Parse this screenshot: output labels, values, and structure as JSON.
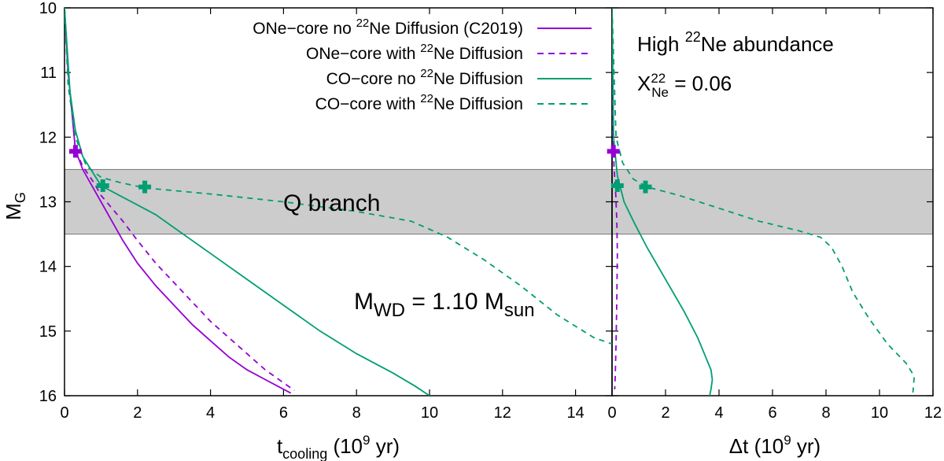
{
  "chart_data": {
    "type": "line",
    "y_axis": {
      "label_main": "M",
      "label_sub": "G",
      "ylim": [
        10,
        16
      ],
      "inverted": true,
      "ticks": [
        10,
        11,
        12,
        13,
        14,
        15,
        16
      ],
      "tick_labels": [
        "10",
        "11",
        "12",
        "13",
        "14",
        "15",
        "16"
      ]
    },
    "qbranch": {
      "label": "Q branch",
      "y_range": [
        12.5,
        13.5
      ],
      "color": "#cccccc"
    },
    "series_meta": [
      {
        "key": "one_nodiff",
        "color": "#9400d3",
        "dash": "solid",
        "legend_pre": "ONe−core no ",
        "legend_sup": "22",
        "legend_post": "Ne Diffusion (C2019)"
      },
      {
        "key": "one_diff",
        "color": "#9400d3",
        "dash": "dashed",
        "legend_pre": "ONe−core with ",
        "legend_sup": "22",
        "legend_post": "Ne Diffusion"
      },
      {
        "key": "co_nodiff",
        "color": "#009e73",
        "dash": "solid",
        "legend_pre": "CO−core no ",
        "legend_sup": "22",
        "legend_post": "Ne Diffusion"
      },
      {
        "key": "co_diff",
        "color": "#009e73",
        "dash": "dashed",
        "legend_pre": "CO−core with ",
        "legend_sup": "22",
        "legend_post": "Ne Diffusion"
      }
    ],
    "panels": [
      {
        "name": "left",
        "xlabel_main": "t",
        "xlabel_sub": "cooling",
        "xlabel_rest": " (10",
        "xlabel_sup": "9",
        "xlabel_end": " yr)",
        "xlim": [
          0,
          15
        ],
        "xticks": [
          0,
          2,
          4,
          6,
          8,
          10,
          12,
          14
        ],
        "xtick_labels": [
          "0",
          "2",
          "4",
          "6",
          "8",
          "10",
          "12",
          "14"
        ],
        "series": [
          {
            "key": "one_nodiff",
            "x": [
              0.0,
              0.1,
              0.2,
              0.3,
              0.5,
              0.8,
              1.0,
              1.3,
              1.6,
              2.0,
              2.5,
              3.0,
              3.5,
              4.0,
              4.5,
              5.0,
              5.5,
              6.0,
              6.2
            ],
            "y": [
              10.0,
              11.0,
              11.6,
              12.2,
              12.5,
              12.8,
              13.0,
              13.3,
              13.6,
              13.95,
              14.3,
              14.6,
              14.9,
              15.15,
              15.4,
              15.6,
              15.75,
              15.9,
              15.96
            ]
          },
          {
            "key": "one_diff",
            "x": [
              0.0,
              0.1,
              0.2,
              0.3,
              0.5,
              0.8,
              1.0,
              1.3,
              1.6,
              2.0,
              2.5,
              3.0,
              3.5,
              4.0,
              4.5,
              5.0,
              5.5,
              6.0,
              6.3
            ],
            "y": [
              10.0,
              11.0,
              11.6,
              12.2,
              12.45,
              12.7,
              12.9,
              13.1,
              13.3,
              13.6,
              13.95,
              14.25,
              14.55,
              14.85,
              15.1,
              15.35,
              15.6,
              15.8,
              15.92
            ]
          },
          {
            "key": "co_nodiff",
            "x": [
              0.0,
              0.15,
              0.3,
              0.5,
              1.0,
              1.5,
              2.0,
              2.5,
              3.0,
              3.5,
              4.0,
              5.0,
              6.0,
              7.0,
              8.0,
              9.0,
              9.6,
              10.0
            ],
            "y": [
              10.0,
              11.3,
              11.9,
              12.3,
              12.75,
              12.9,
              13.05,
              13.2,
              13.4,
              13.6,
              13.8,
              14.2,
              14.6,
              15.0,
              15.35,
              15.65,
              15.85,
              16.0
            ]
          },
          {
            "key": "co_diff",
            "x": [
              0.0,
              0.1,
              0.3,
              0.6,
              1.0,
              1.5,
              2.0,
              2.5,
              4.0,
              6.0,
              8.0,
              9.5,
              10.5,
              11.5,
              12.5,
              13.5,
              14.5,
              15.0
            ],
            "y": [
              10.0,
              11.2,
              12.0,
              12.45,
              12.62,
              12.7,
              12.76,
              12.8,
              12.88,
              13.0,
              13.15,
              13.3,
              13.55,
              13.9,
              14.3,
              14.75,
              15.1,
              15.2
            ]
          }
        ],
        "markers": [
          {
            "key": "one_nodiff",
            "x": 0.3,
            "y": 12.22
          },
          {
            "key": "co_nodiff",
            "x": 1.05,
            "y": 12.75
          },
          {
            "key": "co_diff",
            "x": 2.2,
            "y": 12.77
          }
        ]
      },
      {
        "name": "right",
        "xlabel_main": "Δt",
        "xlabel_sub": "",
        "xlabel_rest": " (10",
        "xlabel_sup": "9",
        "xlabel_end": " yr)",
        "xlim": [
          0,
          12
        ],
        "xticks": [
          0,
          2,
          4,
          6,
          8,
          10,
          12
        ],
        "xtick_labels": [
          "0",
          "2",
          "4",
          "6",
          "8",
          "10",
          "12"
        ],
        "series": [
          {
            "key": "one_diff",
            "x": [
              0.0,
              0.03,
              0.08,
              0.14,
              0.18,
              0.2,
              0.18,
              0.15,
              0.12,
              0.1
            ],
            "y": [
              10.0,
              12.0,
              12.5,
              12.9,
              13.3,
              13.8,
              14.5,
              15.2,
              15.7,
              15.9
            ]
          },
          {
            "key": "co_nodiff",
            "x": [
              0.0,
              0.06,
              0.2,
              0.45,
              0.8,
              1.3,
              2.0,
              2.7,
              3.2,
              3.5,
              3.7,
              3.75,
              3.7,
              3.65
            ],
            "y": [
              10.0,
              12.0,
              12.6,
              13.0,
              13.3,
              13.7,
              14.2,
              14.7,
              15.1,
              15.4,
              15.6,
              15.75,
              15.9,
              16.0
            ]
          },
          {
            "key": "co_diff",
            "x": [
              0.0,
              0.15,
              0.4,
              0.8,
              1.3,
              2.5,
              4.0,
              5.5,
              7.0,
              7.8,
              8.2,
              8.6,
              9.0,
              9.6,
              10.3,
              11.0,
              11.3,
              11.25
            ],
            "y": [
              10.0,
              12.0,
              12.4,
              12.65,
              12.77,
              12.9,
              13.1,
              13.3,
              13.45,
              13.55,
              13.7,
              14.0,
              14.4,
              14.8,
              15.2,
              15.5,
              15.7,
              15.95
            ]
          }
        ],
        "markers": [
          {
            "key": "one_nodiff",
            "x": 0.05,
            "y": 12.22
          },
          {
            "key": "co_nodiff",
            "x": 0.2,
            "y": 12.75
          },
          {
            "key": "co_diff",
            "x": 1.25,
            "y": 12.77
          }
        ]
      }
    ],
    "annotations": {
      "mwd": {
        "pre": "M",
        "sub1": "WD",
        "mid": " = 1.10 M",
        "sub2": "sun"
      },
      "high_ne": {
        "pre": "High ",
        "sup": "22",
        "post": "Ne abundance"
      },
      "x_ne": {
        "pre": "X",
        "sup": "22",
        "sub": "Ne",
        "post": " = 0.06"
      }
    }
  }
}
